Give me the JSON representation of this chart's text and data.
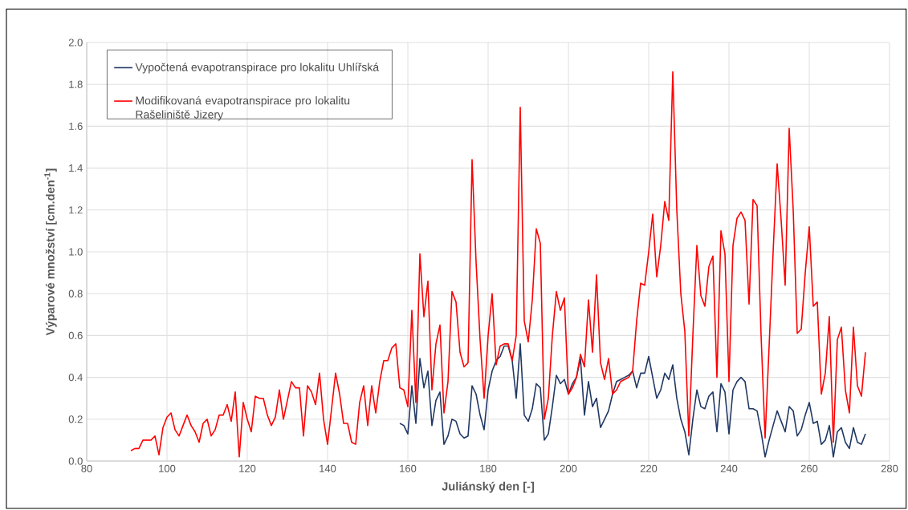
{
  "chart_data": {
    "type": "line",
    "xlabel": "Juliánský den [-]",
    "ylabel": "Výparové množství [cm.den$^{-1}$]",
    "xlim": [
      80,
      280
    ],
    "xticks": [
      80,
      100,
      120,
      140,
      160,
      180,
      200,
      220,
      240,
      260,
      280
    ],
    "ylim": [
      0,
      2
    ],
    "yticks": [
      {
        "value": 0,
        "label": "0.0"
      },
      {
        "value": 0.2,
        "label": "0.2"
      },
      {
        "value": 0.4,
        "label": "0.4"
      },
      {
        "value": 0.6,
        "label": "0.6"
      },
      {
        "value": 0.8,
        "label": "0.8"
      },
      {
        "value": 1,
        "label": "1.0"
      },
      {
        "value": 1.2,
        "label": "1.2"
      },
      {
        "value": 1.4,
        "label": "1.4"
      },
      {
        "value": 1.6,
        "label": "1.6"
      },
      {
        "value": 1.8,
        "label": "1.8"
      },
      {
        "value": 2,
        "label": "2.0"
      }
    ],
    "grid": true,
    "legend": "top left",
    "line_style": "solid",
    "x": [
      91,
      92,
      93,
      94,
      95,
      96,
      97,
      98,
      99,
      100,
      101,
      102,
      103,
      104,
      105,
      106,
      107,
      108,
      109,
      110,
      111,
      112,
      113,
      114,
      115,
      116,
      117,
      118,
      119,
      120,
      121,
      122,
      123,
      124,
      125,
      126,
      127,
      128,
      129,
      130,
      131,
      132,
      133,
      134,
      135,
      136,
      137,
      138,
      139,
      140,
      141,
      142,
      143,
      144,
      145,
      146,
      147,
      148,
      149,
      150,
      151,
      152,
      153,
      154,
      155,
      156,
      157,
      158,
      159,
      160,
      161,
      162,
      163,
      164,
      165,
      166,
      167,
      168,
      169,
      170,
      171,
      172,
      173,
      174,
      175,
      176,
      177,
      178,
      179,
      180,
      181,
      182,
      183,
      184,
      185,
      186,
      187,
      188,
      189,
      190,
      191,
      192,
      193,
      194,
      195,
      196,
      197,
      198,
      199,
      200,
      201,
      202,
      203,
      204,
      205,
      206,
      207,
      208,
      209,
      210,
      211,
      212,
      213,
      214,
      215,
      216,
      217,
      218,
      219,
      220,
      221,
      222,
      223,
      224,
      225,
      226,
      227,
      228,
      229,
      230,
      231,
      232,
      233,
      234,
      235,
      236,
      237,
      238,
      239,
      240,
      241,
      242,
      243,
      244,
      245,
      246,
      247,
      248,
      249,
      250,
      251,
      252,
      253,
      254,
      255,
      256,
      257,
      258,
      259,
      260,
      261,
      262,
      263,
      264,
      265,
      266,
      267,
      268,
      269,
      270,
      271,
      272,
      273,
      274
    ],
    "series": [
      {
        "name": "Vypočtená evapotranspirace pro lokalitu Uhlířská",
        "color": "#203864",
        "values": [
          null,
          null,
          null,
          null,
          null,
          null,
          null,
          null,
          null,
          null,
          null,
          null,
          null,
          null,
          null,
          null,
          null,
          null,
          null,
          null,
          null,
          null,
          null,
          null,
          null,
          null,
          null,
          null,
          null,
          null,
          null,
          null,
          null,
          null,
          null,
          null,
          null,
          null,
          null,
          null,
          null,
          null,
          null,
          null,
          null,
          null,
          null,
          null,
          null,
          null,
          null,
          null,
          null,
          null,
          null,
          null,
          null,
          null,
          null,
          null,
          null,
          null,
          null,
          null,
          null,
          null,
          null,
          0.18,
          0.17,
          0.13,
          0.36,
          0.18,
          0.49,
          0.35,
          0.43,
          0.17,
          0.29,
          0.33,
          0.08,
          0.12,
          0.2,
          0.19,
          0.13,
          0.11,
          0.12,
          0.36,
          0.32,
          0.22,
          0.15,
          0.34,
          0.43,
          0.48,
          0.5,
          0.55,
          0.55,
          0.48,
          0.3,
          0.56,
          0.22,
          0.19,
          0.25,
          0.37,
          0.35,
          0.1,
          0.13,
          0.26,
          0.41,
          0.37,
          0.39,
          0.32,
          0.37,
          0.4,
          0.49,
          0.22,
          0.38,
          0.26,
          0.3,
          0.16,
          0.2,
          0.24,
          0.32,
          0.38,
          0.39,
          0.4,
          0.41,
          0.43,
          0.35,
          0.42,
          0.42,
          0.5,
          0.4,
          0.3,
          0.34,
          0.42,
          0.39,
          0.46,
          0.3,
          0.2,
          0.14,
          0.03,
          0.2,
          0.34,
          0.26,
          0.25,
          0.31,
          0.33,
          0.14,
          0.37,
          0.33,
          0.13,
          0.34,
          0.38,
          0.4,
          0.38,
          0.25,
          0.25,
          0.24,
          0.14,
          0.02,
          0.1,
          0.17,
          0.24,
          0.19,
          0.14,
          0.26,
          0.24,
          0.12,
          0.15,
          0.22,
          0.28,
          0.18,
          0.19,
          0.08,
          0.1,
          0.17,
          0.02,
          0.14,
          0.16,
          0.09,
          0.06,
          0.16,
          0.09,
          0.08,
          0.13
        ]
      },
      {
        "name": "Modifikovaná evapotranspirace pro lokalitu Rašeliniště Jizery",
        "color": "#ff0000",
        "values": [
          0.05,
          0.06,
          0.06,
          0.1,
          0.1,
          0.1,
          0.12,
          0.03,
          0.16,
          0.21,
          0.23,
          0.15,
          0.12,
          0.17,
          0.22,
          0.17,
          0.14,
          0.09,
          0.18,
          0.2,
          0.12,
          0.15,
          0.22,
          0.22,
          0.27,
          0.19,
          0.33,
          0.02,
          0.28,
          0.2,
          0.14,
          0.31,
          0.3,
          0.3,
          0.22,
          0.17,
          0.21,
          0.34,
          0.2,
          0.29,
          0.38,
          0.35,
          0.35,
          0.12,
          0.36,
          0.33,
          0.27,
          0.42,
          0.2,
          0.08,
          0.25,
          0.42,
          0.32,
          0.18,
          0.18,
          0.09,
          0.08,
          0.28,
          0.36,
          0.17,
          0.36,
          0.23,
          0.38,
          0.48,
          0.48,
          0.54,
          0.56,
          0.35,
          0.34,
          0.26,
          0.72,
          0.28,
          0.99,
          0.69,
          0.86,
          0.34,
          0.56,
          0.65,
          0.23,
          0.38,
          0.81,
          0.76,
          0.52,
          0.45,
          0.47,
          1.44,
          0.95,
          0.58,
          0.3,
          0.6,
          0.8,
          0.46,
          0.55,
          0.56,
          0.56,
          0.48,
          0.6,
          1.69,
          0.67,
          0.57,
          0.77,
          1.11,
          1.04,
          0.2,
          0.3,
          0.6,
          0.81,
          0.72,
          0.78,
          0.32,
          0.35,
          0.4,
          0.51,
          0.45,
          0.77,
          0.52,
          0.89,
          0.47,
          0.39,
          0.49,
          0.32,
          0.34,
          0.38,
          0.39,
          0.4,
          0.43,
          0.67,
          0.85,
          0.84,
          1.0,
          1.18,
          0.88,
          1.03,
          1.24,
          1.15,
          1.86,
          1.2,
          0.8,
          0.62,
          0.12,
          0.6,
          1.03,
          0.79,
          0.74,
          0.93,
          0.98,
          0.4,
          1.1,
          0.99,
          0.38,
          1.03,
          1.16,
          1.19,
          1.15,
          0.75,
          1.25,
          1.22,
          0.6,
          0.11,
          0.55,
          1.0,
          1.42,
          1.15,
          0.84,
          1.59,
          1.2,
          0.61,
          0.63,
          0.9,
          1.12,
          0.74,
          0.76,
          0.32,
          0.42,
          0.69,
          0.09,
          0.58,
          0.64,
          0.34,
          0.23,
          0.64,
          0.36,
          0.31,
          0.52
        ]
      }
    ]
  }
}
